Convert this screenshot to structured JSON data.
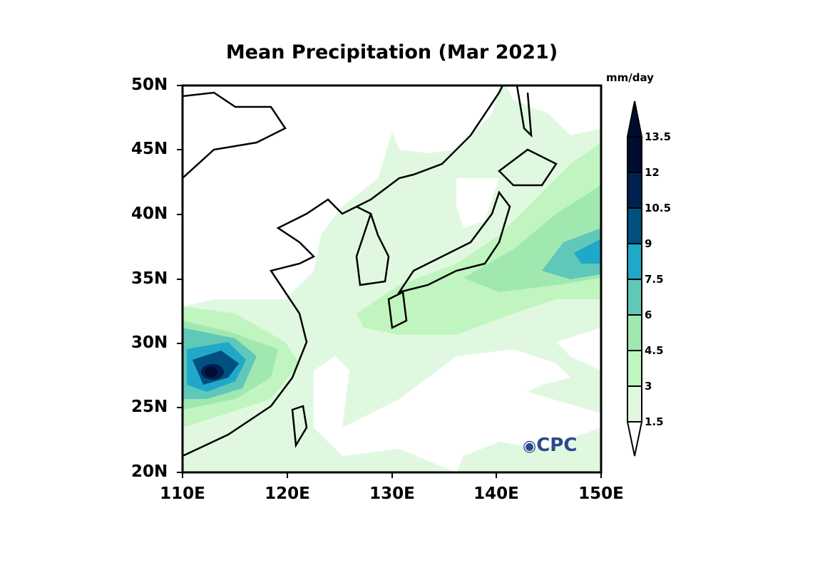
{
  "title": "Mean Precipitation (Mar 2021)",
  "units": "mm/day",
  "lat_labels": [
    "50N",
    "45N",
    "40N",
    "35N",
    "30N",
    "25N",
    "20N"
  ],
  "lon_labels": [
    "110E",
    "120E",
    "130E",
    "140E",
    "150E"
  ],
  "colorbar": {
    "levels": [
      "1.5",
      "3",
      "4.5",
      "6",
      "7.5",
      "9",
      "10.5",
      "12",
      "13.5"
    ],
    "colors": [
      "#ffffff",
      "#e0f8e0",
      "#c0f5c0",
      "#a0e8b0",
      "#60c8b8",
      "#20a8c8",
      "#005080",
      "#002050",
      "#000c30",
      "#000c30"
    ]
  },
  "logo": "CPC",
  "map": {
    "lon_range": [
      110,
      150
    ],
    "lat_range": [
      20,
      50
    ]
  }
}
